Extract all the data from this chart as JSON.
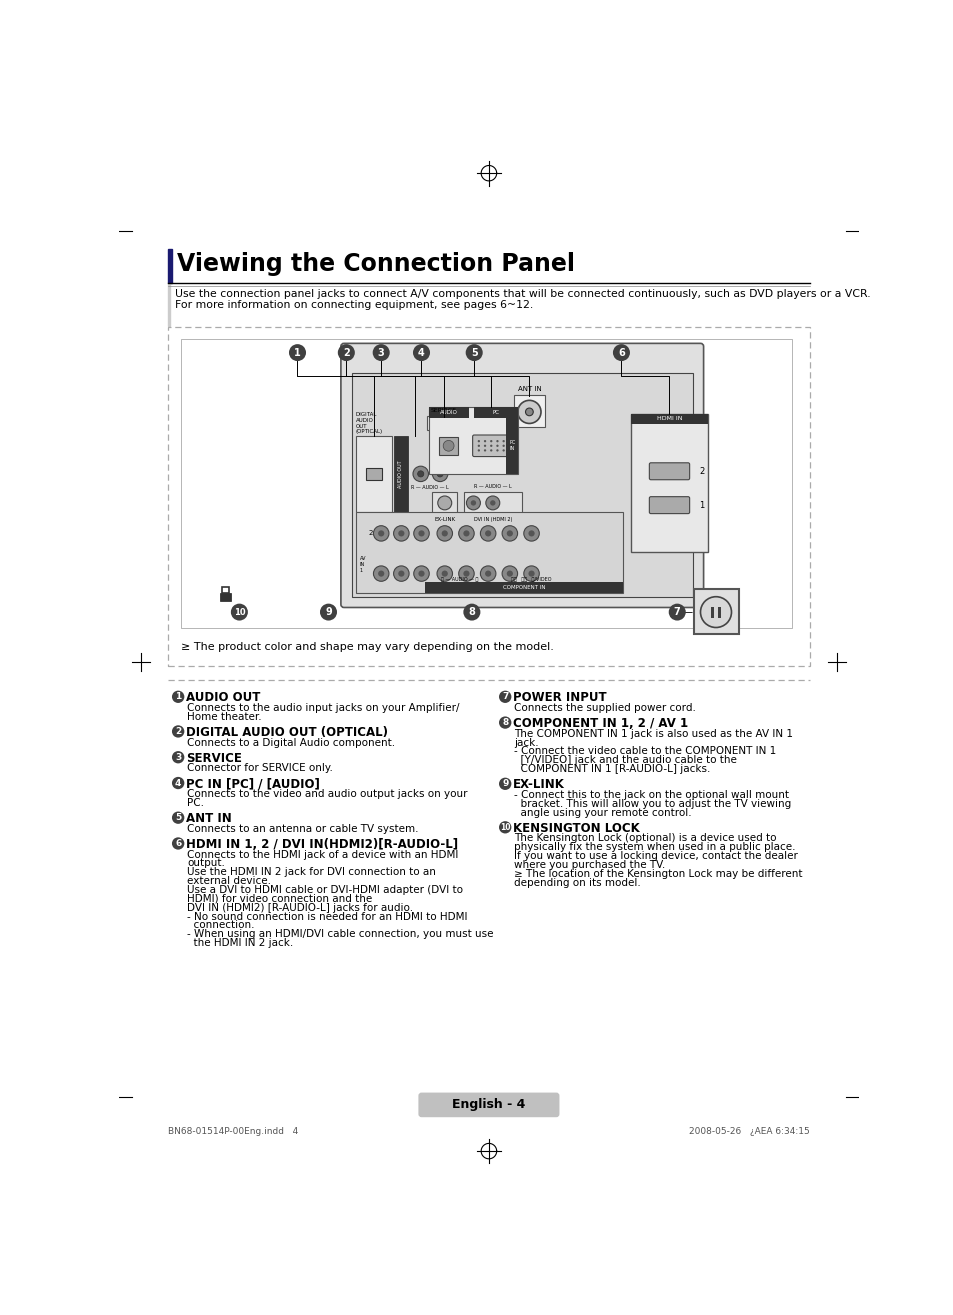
{
  "title": "Viewing the Connection Panel",
  "intro_line1": "Use the connection panel jacks to connect A/V components that will be connected continuously, such as DVD players or a VCR.",
  "intro_line2": "For more information on connecting equipment, see pages 6~12.",
  "note_text": "≥ The product color and shape may vary depending on the model.",
  "page_label": "English - 4",
  "footer_left": "BN68-01514P-00Eng.indd   4",
  "footer_right": "2008-05-26   ¿AEA 6:34:15",
  "left_items": [
    {
      "num": "1",
      "head": "AUDIO OUT",
      "body": "Connects to the audio input jacks on your Amplifier/\nHome theater."
    },
    {
      "num": "2",
      "head": "DIGITAL AUDIO OUT (OPTICAL)",
      "body": "Connects to a Digital Audio component."
    },
    {
      "num": "3",
      "head": "SERVICE",
      "body": "Connector for SERVICE only."
    },
    {
      "num": "4",
      "head": "PC IN [PC] / [AUDIO]",
      "body": "Connects to the video and audio output jacks on your\nPC."
    },
    {
      "num": "5",
      "head": "ANT IN",
      "body": "Connects to an antenna or cable TV system."
    },
    {
      "num": "6",
      "head": "HDMI IN 1, 2 / DVI IN(HDMI2)[R-AUDIO-L]",
      "body": "Connects to the HDMI jack of a device with an HDMI\noutput.\nUse the HDMI IN 2 jack for DVI connection to an\nexternal device.\nUse a DVI to HDMI cable or DVI-HDMI adapter (DVI to\nHDMI) for video connection and the\nDVI IN (HDMI2) [R-AUDIO-L] jacks for audio.\n- No sound connection is needed for an HDMI to HDMI\n  connection.\n- When using an HDMI/DVI cable connection, you must use\n  the HDMI IN 2 jack."
    }
  ],
  "right_items": [
    {
      "num": "7",
      "head": "POWER INPUT",
      "body": "Connects the supplied power cord."
    },
    {
      "num": "8",
      "head": "COMPONENT IN 1, 2 / AV 1",
      "body": "The COMPONENT IN 1 jack is also used as the AV IN 1\njack.\n- Connect the video cable to the COMPONENT IN 1\n  [Y/VIDEO] jack and the audio cable to the\n  COMPONENT IN 1 [R-AUDIO-L] jacks."
    },
    {
      "num": "9",
      "head": "EX-LINK",
      "body": "- Connect this to the jack on the optional wall mount\n  bracket. This will allow you to adjust the TV viewing\n  angle using your remote control."
    },
    {
      "num": "10",
      "head": "KENSINGTON LOCK",
      "body": "The Kensington Lock (optional) is a device used to\nphysically fix the system when used in a public place.\nIf you want to use a locking device, contact the dealer\nwhere you purchased the TV.\n≥ The location of the Kensington Lock may be different\ndepending on its model."
    }
  ],
  "bg_color": "#ffffff"
}
